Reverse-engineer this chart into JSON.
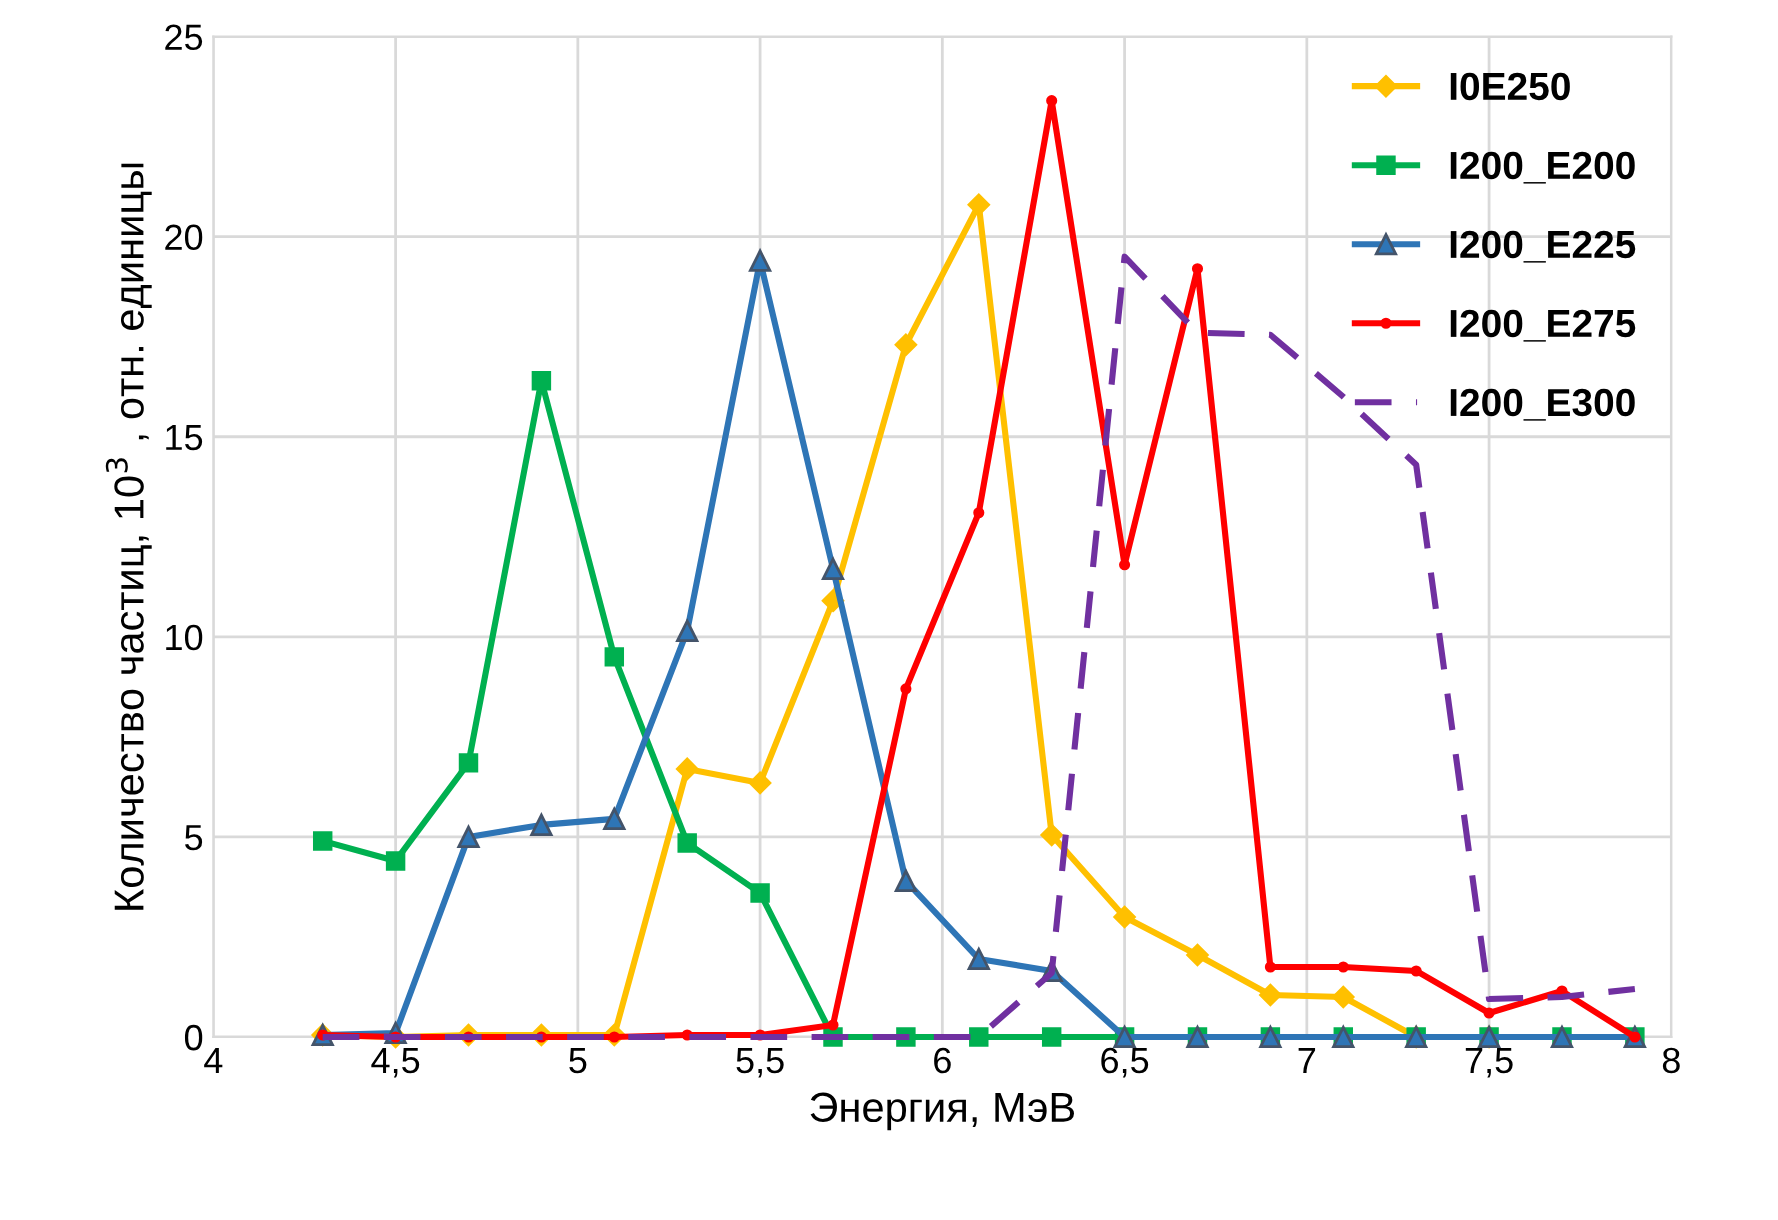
{
  "chart_data": {
    "type": "line",
    "xlabel": "Энергия, МэВ",
    "ylabel": "Количество частиц, 10$^{3}$ , отн. единицы",
    "x": [
      4.3,
      4.5,
      4.7,
      4.9,
      5.1,
      5.3,
      5.5,
      5.7,
      5.9,
      6.1,
      6.3,
      6.5,
      6.7,
      6.9,
      7.1,
      7.3,
      7.5,
      7.7,
      7.9
    ],
    "xlim": [
      4,
      8
    ],
    "xticks": [
      4,
      {
        "value": 4.5,
        "label": "4,5"
      },
      5,
      {
        "value": 5.5,
        "label": "5,5"
      },
      6,
      {
        "value": 6.5,
        "label": "6,5"
      },
      7,
      {
        "value": 7.5,
        "label": "7,5"
      },
      8
    ],
    "ylim": [
      0,
      25
    ],
    "yticks": [
      0,
      5,
      10,
      15,
      20,
      25
    ],
    "grid": true,
    "legend": "top right",
    "series": [
      {
        "name": "I0E250",
        "color": "#ffc000",
        "marker": "diamond",
        "line_style": "solid",
        "values": [
          0.05,
          0,
          0.05,
          0.05,
          0.05,
          6.7,
          6.35,
          10.9,
          17.3,
          20.8,
          5.05,
          3.0,
          2.05,
          1.05,
          1.0,
          0,
          0,
          null,
          null
        ]
      },
      {
        "name": "I200_E200",
        "color": "#00b050",
        "marker": "square",
        "line_style": "solid",
        "values": [
          4.9,
          4.4,
          6.85,
          16.4,
          9.5,
          4.85,
          3.6,
          0,
          0,
          0,
          0,
          0,
          0,
          0,
          0,
          0,
          0,
          0,
          0
        ]
      },
      {
        "name": "I200_E225",
        "color": "#2e75b6",
        "marker": "triangle",
        "line_style": "solid",
        "values": [
          0.05,
          0.1,
          5.0,
          5.3,
          5.45,
          10.15,
          19.4,
          11.7,
          3.9,
          1.95,
          1.65,
          0,
          0,
          0,
          0,
          0,
          0,
          0,
          0
        ]
      },
      {
        "name": "I200_E275",
        "color": "#ff0000",
        "marker": "circle",
        "line_style": "solid",
        "values": [
          0.05,
          0,
          0,
          0,
          0,
          0.05,
          0.05,
          0.3,
          8.7,
          13.1,
          23.4,
          11.8,
          19.2,
          1.75,
          1.75,
          1.65,
          0.6,
          1.15,
          0
        ]
      },
      {
        "name": "I200_E300",
        "color": "#7030a0",
        "marker": "none",
        "line_style": "dashed",
        "values": [
          0,
          0,
          0,
          0,
          0,
          0,
          0,
          0,
          0,
          0,
          1.6,
          19.5,
          17.6,
          17.55,
          16.0,
          14.3,
          0.95,
          1.0,
          1.2
        ]
      }
    ]
  }
}
